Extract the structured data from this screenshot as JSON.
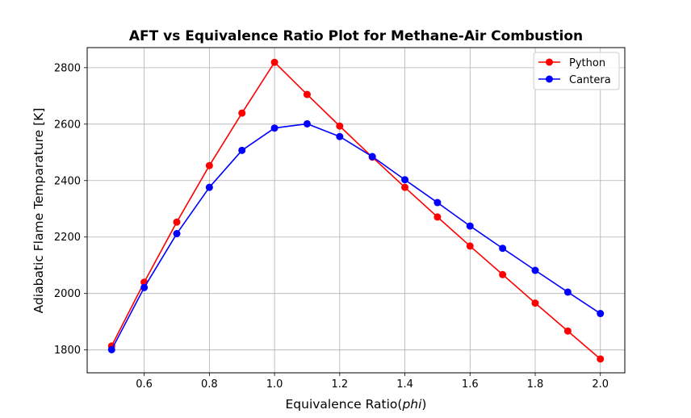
{
  "chart_data": {
    "type": "line",
    "title": "AFT vs Equivalence Ratio Plot for Methane-Air Combustion",
    "xlabel_main": "Equivalence Ratio(",
    "xlabel_italic": "phi",
    "xlabel_end": ")",
    "ylabel": "Adiabatic Flame Temparature [K]",
    "x": [
      0.5,
      0.6,
      0.7,
      0.8,
      0.9,
      1.0,
      1.1,
      1.2,
      1.3,
      1.4,
      1.5,
      1.6,
      1.7,
      1.8,
      1.9,
      2.0
    ],
    "series": [
      {
        "name": "Python",
        "color": "#ff0000",
        "values": [
          1814,
          2040,
          2253,
          2453,
          2639,
          2819,
          2705,
          2593,
          2483,
          2376,
          2271,
          2168,
          2067,
          1966,
          1867,
          1768
        ]
      },
      {
        "name": "Cantera",
        "color": "#0000ff",
        "values": [
          1801,
          2021,
          2212,
          2376,
          2507,
          2586,
          2601,
          2556,
          2485,
          2403,
          2322,
          2239,
          2160,
          2082,
          2005,
          1929
        ]
      }
    ],
    "xticks": [
      "0.6",
      "0.8",
      "1.0",
      "1.2",
      "1.4",
      "1.6",
      "1.8",
      "2.0"
    ],
    "yticks": [
      "1800",
      "2000",
      "2200",
      "2400",
      "2600",
      "2800"
    ],
    "xlim": [
      0.425,
      2.075
    ],
    "ylim": [
      1719,
      2871
    ],
    "grid": true,
    "legend_position": "top-right"
  }
}
